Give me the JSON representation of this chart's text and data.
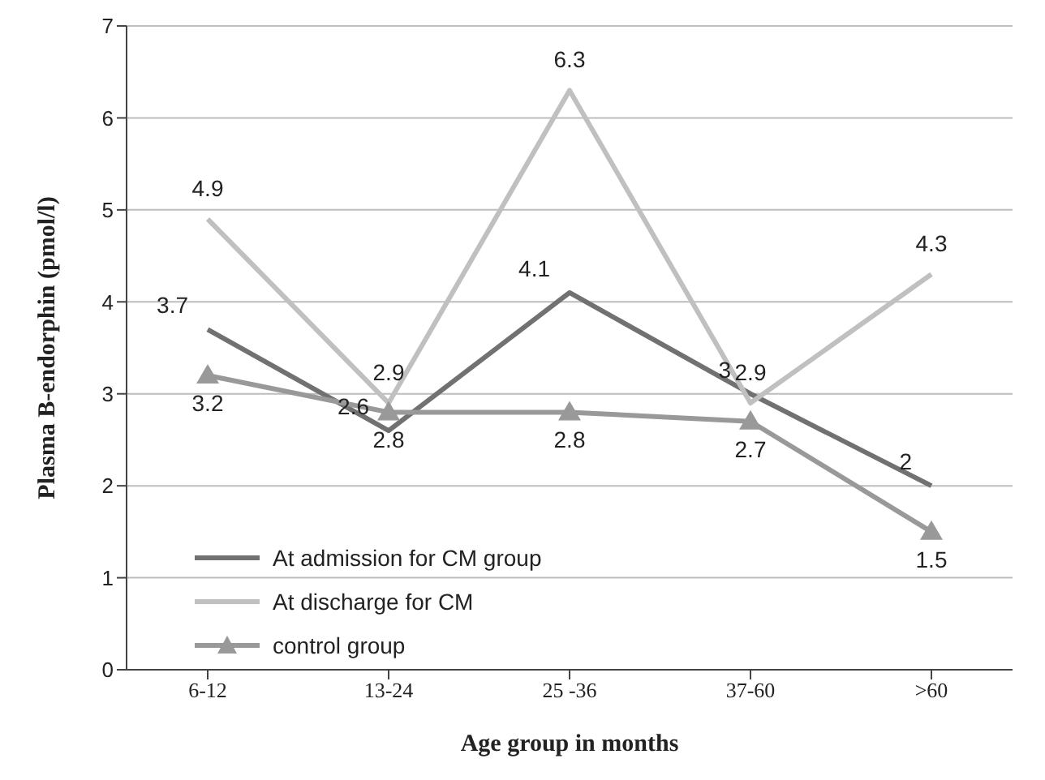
{
  "chart_data": {
    "type": "line",
    "xlabel": "Age group in months",
    "ylabel": "Plasma B-endorphin (pmol/l)",
    "categories": [
      "6-12",
      "13-24",
      "25 -36",
      "37-60",
      ">60"
    ],
    "series": [
      {
        "name": "At admission for CM group",
        "color": "#717171",
        "values": [
          3.7,
          2.6,
          4.1,
          3,
          2
        ]
      },
      {
        "name": "At discharge for CM",
        "color": "#c0c0c0",
        "values": [
          4.9,
          2.9,
          6.3,
          2.9,
          4.3
        ]
      },
      {
        "name": "control group",
        "color": "#999999",
        "values": [
          3.2,
          2.8,
          2.8,
          2.7,
          1.5
        ],
        "marker": "triangle"
      }
    ],
    "ylim": [
      0,
      7
    ],
    "yticks": [
      0,
      1,
      2,
      3,
      4,
      5,
      6,
      7
    ],
    "grid": "y",
    "legend": "bottom left",
    "data_labels": true
  }
}
